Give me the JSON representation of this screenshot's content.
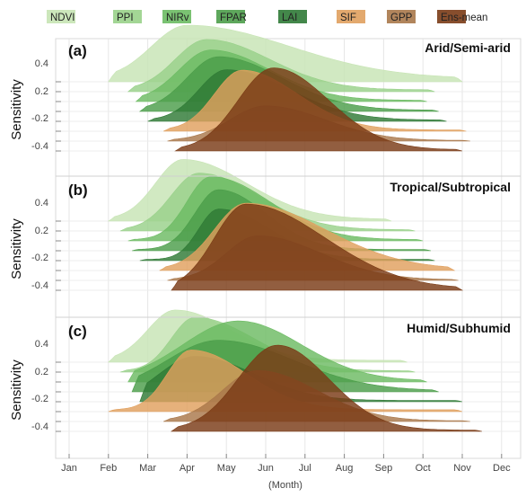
{
  "chart_data": {
    "type": "area",
    "xlabel": "(Month)",
    "ylabel": "Sensitivity",
    "x_ticks": [
      "Jan",
      "Feb",
      "Mar",
      "Apr",
      "May",
      "Jun",
      "Jul",
      "Aug",
      "Sep",
      "Oct",
      "Nov",
      "Dec"
    ],
    "y_ticks": [
      "0.4",
      "0.2",
      "-0.2",
      "-0.4"
    ],
    "legend": [
      {
        "name": "NDVI",
        "color": "#c7e4b4"
      },
      {
        "name": "PPI",
        "color": "#99d18a"
      },
      {
        "name": "NIRv",
        "color": "#6cbb63"
      },
      {
        "name": "FPAR",
        "color": "#4c9d4a"
      },
      {
        "name": "LAI",
        "color": "#2f7a36"
      },
      {
        "name": "SIF",
        "color": "#e0a05e"
      },
      {
        "name": "GPP",
        "color": "#a9784a"
      },
      {
        "name": "Ens-mean",
        "color": "#7a3b16"
      }
    ],
    "panels": [
      {
        "label": "(a)",
        "title": "Arid/Semi-arid",
        "series": [
          {
            "name": "NDVI",
            "start": 2.0,
            "end": 11.0,
            "peak": 4.0,
            "height": 0.85,
            "sl": 0.9,
            "sr": 2.6,
            "floor": 0.05
          },
          {
            "name": "PPI",
            "start": 2.5,
            "end": 10.3,
            "peak": 4.5,
            "height": 0.8,
            "sl": 0.8,
            "sr": 1.6,
            "floor": 0.03
          },
          {
            "name": "NIRv",
            "start": 2.7,
            "end": 10.1,
            "peak": 4.6,
            "height": 0.8,
            "sl": 0.8,
            "sr": 1.5,
            "floor": 0.02
          },
          {
            "name": "FPAR",
            "start": 2.8,
            "end": 10.4,
            "peak": 4.8,
            "height": 0.85,
            "sl": 0.8,
            "sr": 1.6,
            "floor": 0.02
          },
          {
            "name": "LAI",
            "start": 3.0,
            "end": 10.6,
            "peak": 5.0,
            "height": 0.8,
            "sl": 0.7,
            "sr": 1.6,
            "floor": 0.02
          },
          {
            "name": "SIF",
            "start": 3.4,
            "end": 11.1,
            "peak": 5.4,
            "height": 0.95,
            "sl": 0.7,
            "sr": 1.4,
            "floor": 0.02
          },
          {
            "name": "GPP",
            "start": 3.5,
            "end": 11.2,
            "peak": 6.0,
            "height": 0.55,
            "sl": 0.9,
            "sr": 1.5,
            "floor": 0.01
          },
          {
            "name": "Ens-mean",
            "start": 3.7,
            "end": 11.0,
            "peak": 6.2,
            "height": 1.3,
            "sl": 0.9,
            "sr": 1.4,
            "floor": 0.02
          }
        ]
      },
      {
        "label": "(b)",
        "title": "Tropical/Subtropical",
        "series": [
          {
            "name": "NDVI",
            "start": 2.0,
            "end": 9.2,
            "peak": 3.9,
            "height": 0.95,
            "sl": 0.7,
            "sr": 1.6,
            "floor": 0.03
          },
          {
            "name": "PPI",
            "start": 2.3,
            "end": 9.8,
            "peak": 4.3,
            "height": 0.9,
            "sl": 0.7,
            "sr": 1.5,
            "floor": 0.02
          },
          {
            "name": "NIRv",
            "start": 2.5,
            "end": 10.0,
            "peak": 4.6,
            "height": 1.0,
            "sl": 0.6,
            "sr": 1.5,
            "floor": 0.02
          },
          {
            "name": "FPAR",
            "start": 2.6,
            "end": 10.2,
            "peak": 4.8,
            "height": 0.95,
            "sl": 0.6,
            "sr": 1.2,
            "floor": 0.02
          },
          {
            "name": "LAI",
            "start": 2.8,
            "end": 10.3,
            "peak": 4.8,
            "height": 0.8,
            "sl": 0.5,
            "sr": 1.3,
            "floor": 0.02
          },
          {
            "name": "SIF",
            "start": 3.3,
            "end": 10.8,
            "peak": 5.5,
            "height": 1.05,
            "sl": 0.8,
            "sr": 2.0,
            "floor": 0.02
          },
          {
            "name": "GPP",
            "start": 3.5,
            "end": 10.9,
            "peak": 5.8,
            "height": 0.7,
            "sl": 0.8,
            "sr": 1.6,
            "floor": 0.01
          },
          {
            "name": "Ens-mean",
            "start": 3.6,
            "end": 11.0,
            "peak": 5.5,
            "height": 1.35,
            "sl": 0.8,
            "sr": 2.0,
            "floor": 0.02
          }
        ]
      },
      {
        "label": "(c)",
        "title": "Humid/Subhumid",
        "series": [
          {
            "name": "NDVI",
            "start": 2.0,
            "end": 9.6,
            "peak": 3.7,
            "height": 0.8,
            "sl": 0.7,
            "sr": 1.4,
            "floor": 0.03
          },
          {
            "name": "PPI",
            "start": 2.3,
            "end": 9.8,
            "peak": 4.2,
            "height": 0.85,
            "sl": 0.6,
            "sr": 1.5,
            "floor": 0.02
          },
          {
            "name": "NIRv",
            "start": 2.5,
            "end": 10.1,
            "peak": 5.3,
            "height": 0.95,
            "sl": 1.4,
            "sr": 1.6,
            "floor": 0.02
          },
          {
            "name": "FPAR",
            "start": 2.6,
            "end": 10.4,
            "peak": 4.8,
            "height": 0.8,
            "sl": 1.3,
            "sr": 1.9,
            "floor": 0.02
          },
          {
            "name": "LAI",
            "start": 2.8,
            "end": 11.0,
            "peak": 4.2,
            "height": 0.7,
            "sl": 0.9,
            "sr": 1.5,
            "floor": 0.02
          },
          {
            "name": "SIF",
            "start": 2.0,
            "end": 11.0,
            "peak": 4.1,
            "height": 0.95,
            "sl": 0.6,
            "sr": 1.4,
            "floor": 0.03
          },
          {
            "name": "GPP",
            "start": 3.4,
            "end": 11.2,
            "peak": 5.8,
            "height": 0.8,
            "sl": 0.9,
            "sr": 1.5,
            "floor": 0.01
          },
          {
            "name": "Ens-mean",
            "start": 3.6,
            "end": 11.5,
            "peak": 6.3,
            "height": 1.35,
            "sl": 1.0,
            "sr": 1.3,
            "floor": 0.02
          }
        ]
      }
    ]
  }
}
